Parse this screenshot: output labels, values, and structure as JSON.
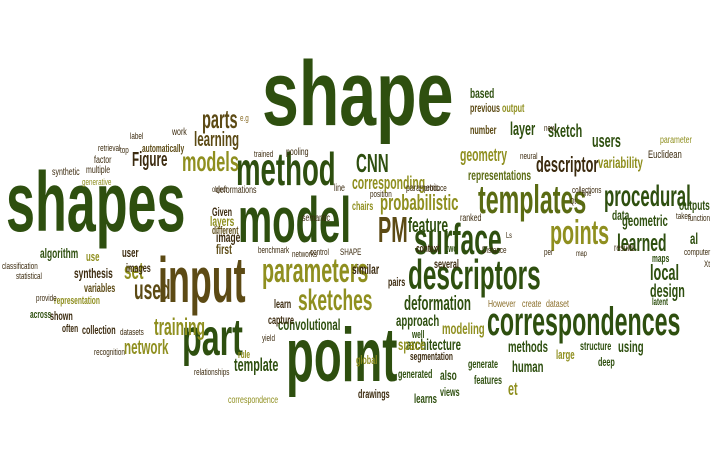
{
  "palette": {
    "dark_green": "#2e4f0f",
    "mid_green": "#5a6b12",
    "olive": "#8f8f1f",
    "brown": "#5c4a14",
    "tan": "#8a6e2a",
    "dark_brown": "#3b2a0e"
  },
  "words": [
    "shape",
    "shapes",
    "model",
    "input",
    "point",
    "part",
    "method",
    "correspondences",
    "descriptors",
    "surface",
    "templates",
    "parameters",
    "points",
    "models",
    "sketches",
    "PM",
    "procedural",
    "CNN",
    "probabilistic",
    "learned",
    "parts",
    "used",
    "set",
    "training",
    "feature",
    "deformation",
    "local",
    "descriptor",
    "geometry",
    "layer",
    "sketch",
    "users",
    "learning",
    "Figure",
    "network",
    "corresponding",
    "methods",
    "template",
    "convolutional",
    "architecture",
    "design",
    "variability",
    "approach",
    "modeling",
    "human",
    "geometric",
    "outputs",
    "data",
    "al",
    "et",
    "space",
    "based",
    "previous",
    "output",
    "number",
    "representations",
    "automatically",
    "layers",
    "first",
    "different",
    "image",
    "user",
    "images",
    "algorithm",
    "synthesis",
    "use",
    "variables",
    "shown",
    "often",
    "collection",
    "representation",
    "across",
    "learn",
    "capture",
    "rule",
    "segmentation",
    "well",
    "generate",
    "also",
    "features",
    "views",
    "learns",
    "generated",
    "drawings",
    "global",
    "chairs",
    "pairs",
    "similar",
    "several",
    "context",
    "two",
    "structure",
    "using",
    "large",
    "deep",
    "create",
    "dataset",
    "ranked",
    "However",
    "maps",
    "latent",
    "parametric",
    "semantic",
    "Given",
    "deformations",
    "line",
    "work",
    "pooling",
    "trained",
    "label",
    "top",
    "factor",
    "multiple",
    "synthetic",
    "generative",
    "retrieval",
    "classification",
    "statistical",
    "provide",
    "datasets",
    "recognition",
    "relationships",
    "correspondence",
    "benchmark",
    "networks",
    "control",
    "SHAPE",
    "yield",
    "position",
    "produce",
    "Distance",
    "per",
    "new",
    "neural",
    "collections",
    "results",
    "Euclidean",
    "parameter",
    "takes",
    "function",
    "computer",
    "Xt",
    "e.g",
    "object",
    "one",
    "map",
    "Qt",
    "Ls"
  ]
}
